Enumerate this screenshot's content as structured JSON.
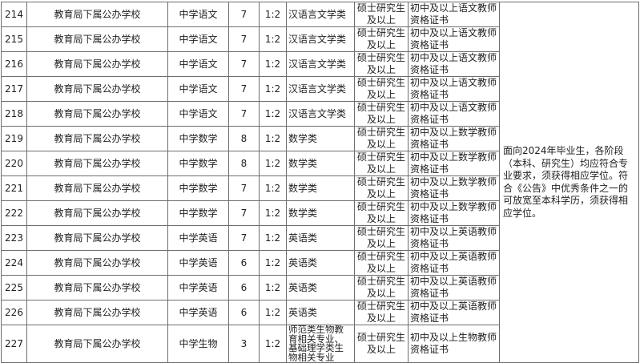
{
  "page": {
    "background_color": "#ffffff",
    "border_color": "#6e6e6e",
    "text_color": "#1f1f1f"
  },
  "table": {
    "rows": [
      {
        "no": "214",
        "school": "教育局下属公办学校",
        "position": "中学语文",
        "count": "7",
        "ratio": "1:2",
        "major": "汉语言文学类",
        "degree": "硕士研究生及以上",
        "certificate": "初中及以上语文教师资格证书"
      },
      {
        "no": "215",
        "school": "教育局下属公办学校",
        "position": "中学语文",
        "count": "7",
        "ratio": "1:2",
        "major": "汉语言文学类",
        "degree": "硕士研究生及以上",
        "certificate": "初中及以上语文教师资格证书"
      },
      {
        "no": "216",
        "school": "教育局下属公办学校",
        "position": "中学语文",
        "count": "7",
        "ratio": "1:2",
        "major": "汉语言文学类",
        "degree": "硕士研究生及以上",
        "certificate": "初中及以上语文教师资格证书"
      },
      {
        "no": "217",
        "school": "教育局下属公办学校",
        "position": "中学语文",
        "count": "7",
        "ratio": "1:2",
        "major": "汉语言文学类",
        "degree": "硕士研究生及以上",
        "certificate": "初中及以上语文教师资格证书"
      },
      {
        "no": "218",
        "school": "教育局下属公办学校",
        "position": "中学语文",
        "count": "7",
        "ratio": "1:2",
        "major": "汉语言文学类",
        "degree": "硕士研究生及以上",
        "certificate": "初中及以上语文教师资格证书"
      },
      {
        "no": "219",
        "school": "教育局下属公办学校",
        "position": "中学数学",
        "count": "8",
        "ratio": "1:2",
        "major": "数学类",
        "degree": "硕士研究生及以上",
        "certificate": "初中及以上数学教师资格证书"
      },
      {
        "no": "220",
        "school": "教育局下属公办学校",
        "position": "中学数学",
        "count": "8",
        "ratio": "1:2",
        "major": "数学类",
        "degree": "硕士研究生及以上",
        "certificate": "初中及以上数学教师资格证书"
      },
      {
        "no": "221",
        "school": "教育局下属公办学校",
        "position": "中学数学",
        "count": "7",
        "ratio": "1:2",
        "major": "数学类",
        "degree": "硕士研究生及以上",
        "certificate": "初中及以上数学教师资格证书"
      },
      {
        "no": "222",
        "school": "教育局下属公办学校",
        "position": "中学数学",
        "count": "7",
        "ratio": "1:2",
        "major": "数学类",
        "degree": "硕士研究生及以上",
        "certificate": "初中及以上数学教师资格证书"
      },
      {
        "no": "223",
        "school": "教育局下属公办学校",
        "position": "中学英语",
        "count": "7",
        "ratio": "1:2",
        "major": "英语类",
        "degree": "硕士研究生及以上",
        "certificate": "初中及以上英语教师资格证书"
      },
      {
        "no": "224",
        "school": "教育局下属公办学校",
        "position": "中学英语",
        "count": "6",
        "ratio": "1:2",
        "major": "英语类",
        "degree": "硕士研究生及以上",
        "certificate": "初中及以上英语教师资格证书"
      },
      {
        "no": "225",
        "school": "教育局下属公办学校",
        "position": "中学英语",
        "count": "6",
        "ratio": "1:2",
        "major": "英语类",
        "degree": "硕士研究生及以上",
        "certificate": "初中及以上英语教师资格证书"
      },
      {
        "no": "226",
        "school": "教育局下属公办学校",
        "position": "中学英语",
        "count": "6",
        "ratio": "1:2",
        "major": "英语类",
        "degree": "硕士研究生及以上",
        "certificate": "初中及以上英语教师资格证书"
      },
      {
        "no": "227",
        "school": "教育局下属公办学校",
        "position": "中学生物",
        "count": "3",
        "ratio": "1:2",
        "major": "师范类生物教育相关专业、\n基础理学类生物相关专业",
        "degree": "硕士研究生及以上",
        "certificate": "初中及以上生物教师资格证书"
      }
    ],
    "note": "面向2024年毕业生，各阶段（本科、研究生）均应符合专业要求，须获得相应学位。符合《公告》中优秀条件之一的可放宽至本科学历，须获得相应学位。"
  }
}
